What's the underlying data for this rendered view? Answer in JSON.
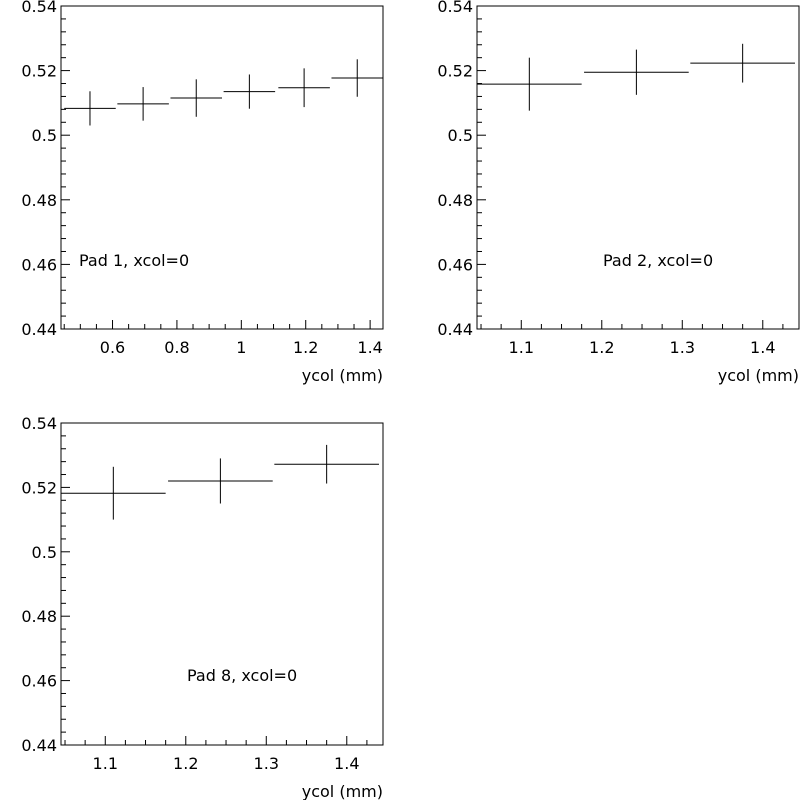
{
  "chart_data": [
    {
      "type": "scatter",
      "annotation": "Pad 1, xcol=0",
      "xlabel": "ycol (mm)",
      "xlim": [
        0.44,
        1.44
      ],
      "ylim": [
        0.44,
        0.54
      ],
      "xticks": [
        0.6,
        0.8,
        1,
        1.2,
        1.4
      ],
      "xtick_labels": [
        "0.6",
        "0.8",
        "1",
        "1.2",
        "1.4"
      ],
      "yticks": [
        0.44,
        0.46,
        0.48,
        0.5,
        0.52,
        0.54
      ],
      "ytick_labels": [
        "0.44",
        "0.46",
        "0.48",
        "0.5",
        "0.52",
        "0.54"
      ],
      "grid": false,
      "points": [
        {
          "x": 0.53,
          "xerr": 0.08,
          "y": 0.5083,
          "yerr": 0.0053
        },
        {
          "x": 0.695,
          "xerr": 0.08,
          "y": 0.5097,
          "yerr": 0.0052
        },
        {
          "x": 0.86,
          "xerr": 0.08,
          "y": 0.5115,
          "yerr": 0.0058
        },
        {
          "x": 1.025,
          "xerr": 0.08,
          "y": 0.5135,
          "yerr": 0.0053
        },
        {
          "x": 1.195,
          "xerr": 0.08,
          "y": 0.5147,
          "yerr": 0.006
        },
        {
          "x": 1.36,
          "xerr": 0.08,
          "y": 0.5177,
          "yerr": 0.0058
        }
      ]
    },
    {
      "type": "scatter",
      "annotation": "Pad 2, xcol=0",
      "xlabel": "ycol (mm)",
      "xlim": [
        1.045,
        1.445
      ],
      "ylim": [
        0.44,
        0.54
      ],
      "xticks": [
        1.1,
        1.2,
        1.3,
        1.4
      ],
      "xtick_labels": [
        "1.1",
        "1.2",
        "1.3",
        "1.4"
      ],
      "yticks": [
        0.44,
        0.46,
        0.48,
        0.5,
        0.52,
        0.54
      ],
      "ytick_labels": [
        "0.44",
        "0.46",
        "0.48",
        "0.5",
        "0.52",
        "0.54"
      ],
      "grid": false,
      "points": [
        {
          "x": 1.11,
          "xerr": 0.065,
          "y": 0.5158,
          "yerr": 0.0082
        },
        {
          "x": 1.243,
          "xerr": 0.065,
          "y": 0.5195,
          "yerr": 0.007
        },
        {
          "x": 1.375,
          "xerr": 0.065,
          "y": 0.5223,
          "yerr": 0.006
        }
      ]
    },
    {
      "type": "scatter",
      "annotation": "Pad 8, xcol=0",
      "xlabel": "ycol (mm)",
      "xlim": [
        1.045,
        1.445
      ],
      "ylim": [
        0.44,
        0.54
      ],
      "xticks": [
        1.1,
        1.2,
        1.3,
        1.4
      ],
      "xtick_labels": [
        "1.1",
        "1.2",
        "1.3",
        "1.4"
      ],
      "yticks": [
        0.44,
        0.46,
        0.48,
        0.5,
        0.52,
        0.54
      ],
      "ytick_labels": [
        "0.44",
        "0.46",
        "0.48",
        "0.5",
        "0.52",
        "0.54"
      ],
      "grid": false,
      "points": [
        {
          "x": 1.11,
          "xerr": 0.065,
          "y": 0.5182,
          "yerr": 0.0082
        },
        {
          "x": 1.243,
          "xerr": 0.065,
          "y": 0.522,
          "yerr": 0.007
        },
        {
          "x": 1.375,
          "xerr": 0.065,
          "y": 0.5272,
          "yerr": 0.006
        }
      ]
    }
  ]
}
